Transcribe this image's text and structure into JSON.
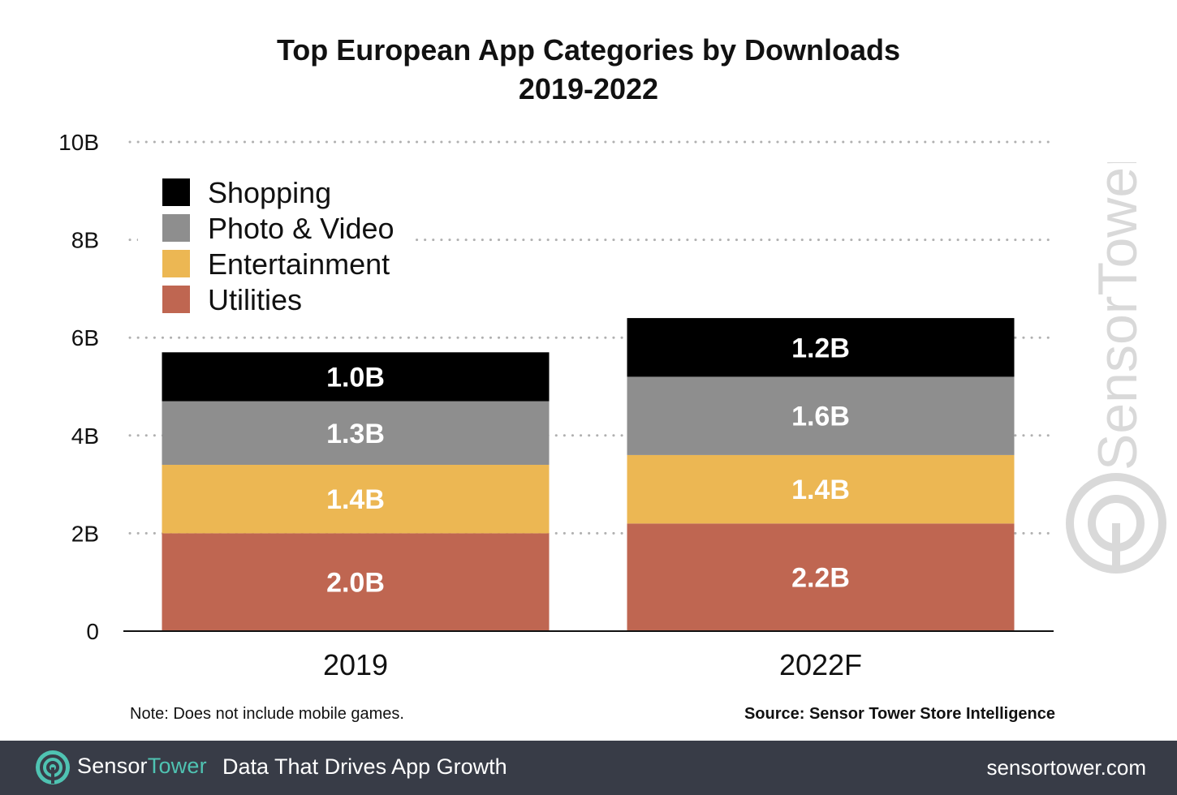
{
  "chart_data": {
    "type": "bar",
    "stacked": true,
    "title": "Top European App Categories by Downloads",
    "subtitle": "2019-2022",
    "categories": [
      "2019",
      "2022F"
    ],
    "series": [
      {
        "name": "Utilities",
        "color": "#bf6651",
        "values": [
          2.0,
          2.2
        ],
        "labels": [
          "2.0B",
          "2.2B"
        ]
      },
      {
        "name": "Entertainment",
        "color": "#ecb753",
        "values": [
          1.4,
          1.4
        ],
        "labels": [
          "1.4B",
          "1.4B"
        ]
      },
      {
        "name": "Photo & Video",
        "color": "#8e8e8e",
        "values": [
          1.3,
          1.6
        ],
        "labels": [
          "1.3B",
          "1.6B"
        ]
      },
      {
        "name": "Shopping",
        "color": "#000000",
        "values": [
          1.0,
          1.2
        ],
        "labels": [
          "1.0B",
          "1.2B"
        ]
      }
    ],
    "legend_order": [
      "Shopping",
      "Photo & Video",
      "Entertainment",
      "Utilities"
    ],
    "legend_position": "top-left",
    "ylim": [
      0,
      10
    ],
    "yticks": [
      0,
      2,
      4,
      6,
      8,
      10
    ],
    "ytick_labels": [
      "0",
      "2B",
      "4B",
      "6B",
      "8B",
      "10B"
    ],
    "grid": "dotted",
    "xlabel": "",
    "ylabel": ""
  },
  "note": "Note: Does not include mobile games.",
  "source": "Source: Sensor Tower Store Intelligence",
  "watermark": "SensorTower",
  "footer": {
    "brand_sensor": "Sensor",
    "brand_tower": "Tower",
    "tagline": "Data That Drives App Growth",
    "url": "sensortower.com",
    "brand_color": "#4fc3b2",
    "background": "#383c47"
  }
}
